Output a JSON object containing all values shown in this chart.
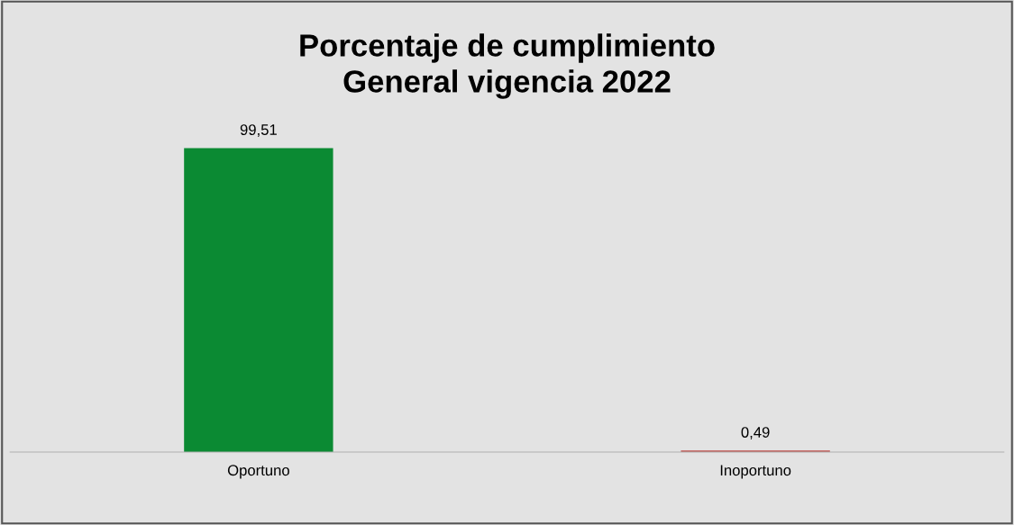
{
  "chart_data": {
    "type": "bar",
    "title": "Porcentaje de cumplimiento\nGeneral vigencia 2022",
    "categories": [
      "Oportuno",
      "Inoportuno"
    ],
    "values": [
      99.51,
      0.49
    ],
    "colors": [
      "#0b8a33",
      "#c0504d"
    ],
    "value_labels": [
      "99,51",
      "0,49"
    ],
    "grid": false,
    "legend": false
  }
}
